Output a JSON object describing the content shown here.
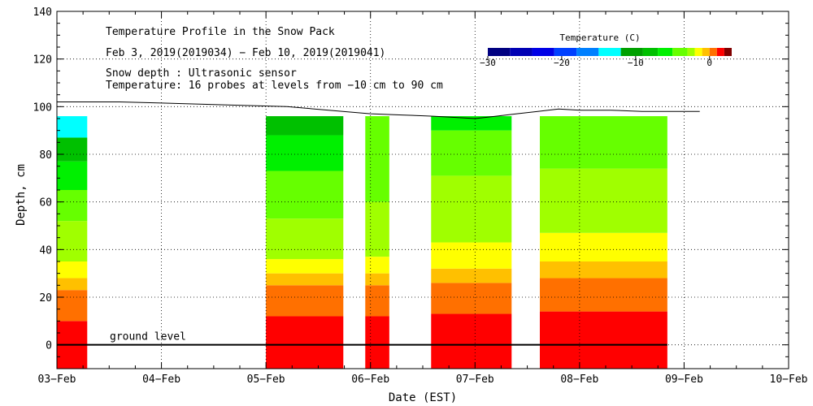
{
  "chart_data": {
    "type": "heatmap",
    "title": "Temperature Profile in the Snow Pack",
    "subtitle": "Feb  3, 2019(2019034) − Feb 10, 2019(2019041)",
    "notes": [
      "Snow depth : Ultrasonic sensor",
      "Temperature: 16 probes at levels from −10 cm to 90 cm"
    ],
    "xlabel": "Date (EST)",
    "ylabel": "Depth, cm",
    "x_ticks": [
      "03−Feb",
      "04−Feb",
      "05−Feb",
      "06−Feb",
      "07−Feb",
      "08−Feb",
      "09−Feb",
      "10−Feb"
    ],
    "xlim_days": [
      3,
      10
    ],
    "ylim": [
      -10,
      140
    ],
    "y_ticks": [
      0,
      20,
      40,
      60,
      80,
      100,
      120,
      140
    ],
    "grid": true,
    "ground_level_label": "ground level",
    "colorbar": {
      "title": "Temperature (C)",
      "range": [
        -30,
        3
      ],
      "tick_values": [
        -30,
        -20,
        -10,
        0
      ],
      "tick_labels": [
        "−30",
        "−20",
        "−10",
        "0"
      ],
      "stops": [
        {
          "from": -30,
          "to": -27,
          "color": "#000080"
        },
        {
          "from": -27,
          "to": -24,
          "color": "#0000b4"
        },
        {
          "from": -24,
          "to": -21,
          "color": "#0000e6"
        },
        {
          "from": -21,
          "to": -18,
          "color": "#0040ff"
        },
        {
          "from": -18,
          "to": -15,
          "color": "#0080ff"
        },
        {
          "from": -15,
          "to": -12,
          "color": "#00ffff"
        },
        {
          "from": -12,
          "to": -9,
          "color": "#00a000"
        },
        {
          "from": -9,
          "to": -7,
          "color": "#00c000"
        },
        {
          "from": -7,
          "to": -5,
          "color": "#00f000"
        },
        {
          "from": -5,
          "to": -3,
          "color": "#66ff00"
        },
        {
          "from": -3,
          "to": -2,
          "color": "#a0ff00"
        },
        {
          "from": -2,
          "to": -1,
          "color": "#ffff00"
        },
        {
          "from": -1,
          "to": 0,
          "color": "#ffc000"
        },
        {
          "from": 0,
          "to": 1,
          "color": "#ff7000"
        },
        {
          "from": 1,
          "to": 2,
          "color": "#ff0000"
        },
        {
          "from": 2,
          "to": 3,
          "color": "#800000"
        }
      ]
    },
    "segments": [
      {
        "start": 3.0,
        "end": 3.29,
        "bands": [
          {
            "from": -10,
            "to": 10,
            "color": "#ff0000"
          },
          {
            "from": 10,
            "to": 23,
            "color": "#ff7000"
          },
          {
            "from": 23,
            "to": 28,
            "color": "#ffc000"
          },
          {
            "from": 28,
            "to": 35,
            "color": "#ffff00"
          },
          {
            "from": 35,
            "to": 52,
            "color": "#a0ff00"
          },
          {
            "from": 52,
            "to": 65,
            "color": "#66ff00"
          },
          {
            "from": 65,
            "to": 77,
            "color": "#00f000"
          },
          {
            "from": 77,
            "to": 87,
            "color": "#00c000"
          },
          {
            "from": 87,
            "to": 96,
            "color": "#00ffff"
          }
        ]
      },
      {
        "start": 5.0,
        "end": 5.74,
        "bands": [
          {
            "from": -10,
            "to": 12,
            "color": "#ff0000"
          },
          {
            "from": 12,
            "to": 25,
            "color": "#ff7000"
          },
          {
            "from": 25,
            "to": 30,
            "color": "#ffc000"
          },
          {
            "from": 30,
            "to": 36,
            "color": "#ffff00"
          },
          {
            "from": 36,
            "to": 53,
            "color": "#a0ff00"
          },
          {
            "from": 53,
            "to": 73,
            "color": "#66ff00"
          },
          {
            "from": 73,
            "to": 88,
            "color": "#00f000"
          },
          {
            "from": 88,
            "to": 96,
            "color": "#00c000"
          }
        ]
      },
      {
        "start": 5.95,
        "end": 6.18,
        "bands": [
          {
            "from": -10,
            "to": 12,
            "color": "#ff0000"
          },
          {
            "from": 12,
            "to": 25,
            "color": "#ff7000"
          },
          {
            "from": 25,
            "to": 30,
            "color": "#ffc000"
          },
          {
            "from": 30,
            "to": 37,
            "color": "#ffff00"
          },
          {
            "from": 37,
            "to": 60,
            "color": "#a0ff00"
          },
          {
            "from": 60,
            "to": 96,
            "color": "#66ff00"
          }
        ]
      },
      {
        "start": 6.58,
        "end": 7.35,
        "bands": [
          {
            "from": -10,
            "to": 13,
            "color": "#ff0000"
          },
          {
            "from": 13,
            "to": 26,
            "color": "#ff7000"
          },
          {
            "from": 26,
            "to": 32,
            "color": "#ffc000"
          },
          {
            "from": 32,
            "to": 43,
            "color": "#ffff00"
          },
          {
            "from": 43,
            "to": 71,
            "color": "#a0ff00"
          },
          {
            "from": 71,
            "to": 90,
            "color": "#66ff00"
          },
          {
            "from": 90,
            "to": 96,
            "color": "#00f000"
          }
        ]
      },
      {
        "start": 7.62,
        "end": 8.84,
        "bands": [
          {
            "from": -10,
            "to": 14,
            "color": "#ff0000"
          },
          {
            "from": 14,
            "to": 28,
            "color": "#ff7000"
          },
          {
            "from": 28,
            "to": 35,
            "color": "#ffc000"
          },
          {
            "from": 35,
            "to": 47,
            "color": "#ffff00"
          },
          {
            "from": 47,
            "to": 74,
            "color": "#a0ff00"
          },
          {
            "from": 74,
            "to": 96,
            "color": "#66ff00"
          }
        ]
      }
    ],
    "snow_depth": {
      "x": [
        3.0,
        3.3,
        3.6,
        4.0,
        4.4,
        4.8,
        5.2,
        5.6,
        6.0,
        6.3,
        6.6,
        6.8,
        7.0,
        7.2,
        7.4,
        7.6,
        7.8,
        8.0,
        8.3,
        8.6,
        8.9,
        9.15
      ],
      "y": [
        102,
        102,
        102,
        101.5,
        101,
        100.5,
        100,
        98.5,
        97,
        96.5,
        96,
        95.5,
        95,
        96,
        97,
        98,
        99,
        98.5,
        98.5,
        98,
        98,
        98
      ]
    }
  }
}
